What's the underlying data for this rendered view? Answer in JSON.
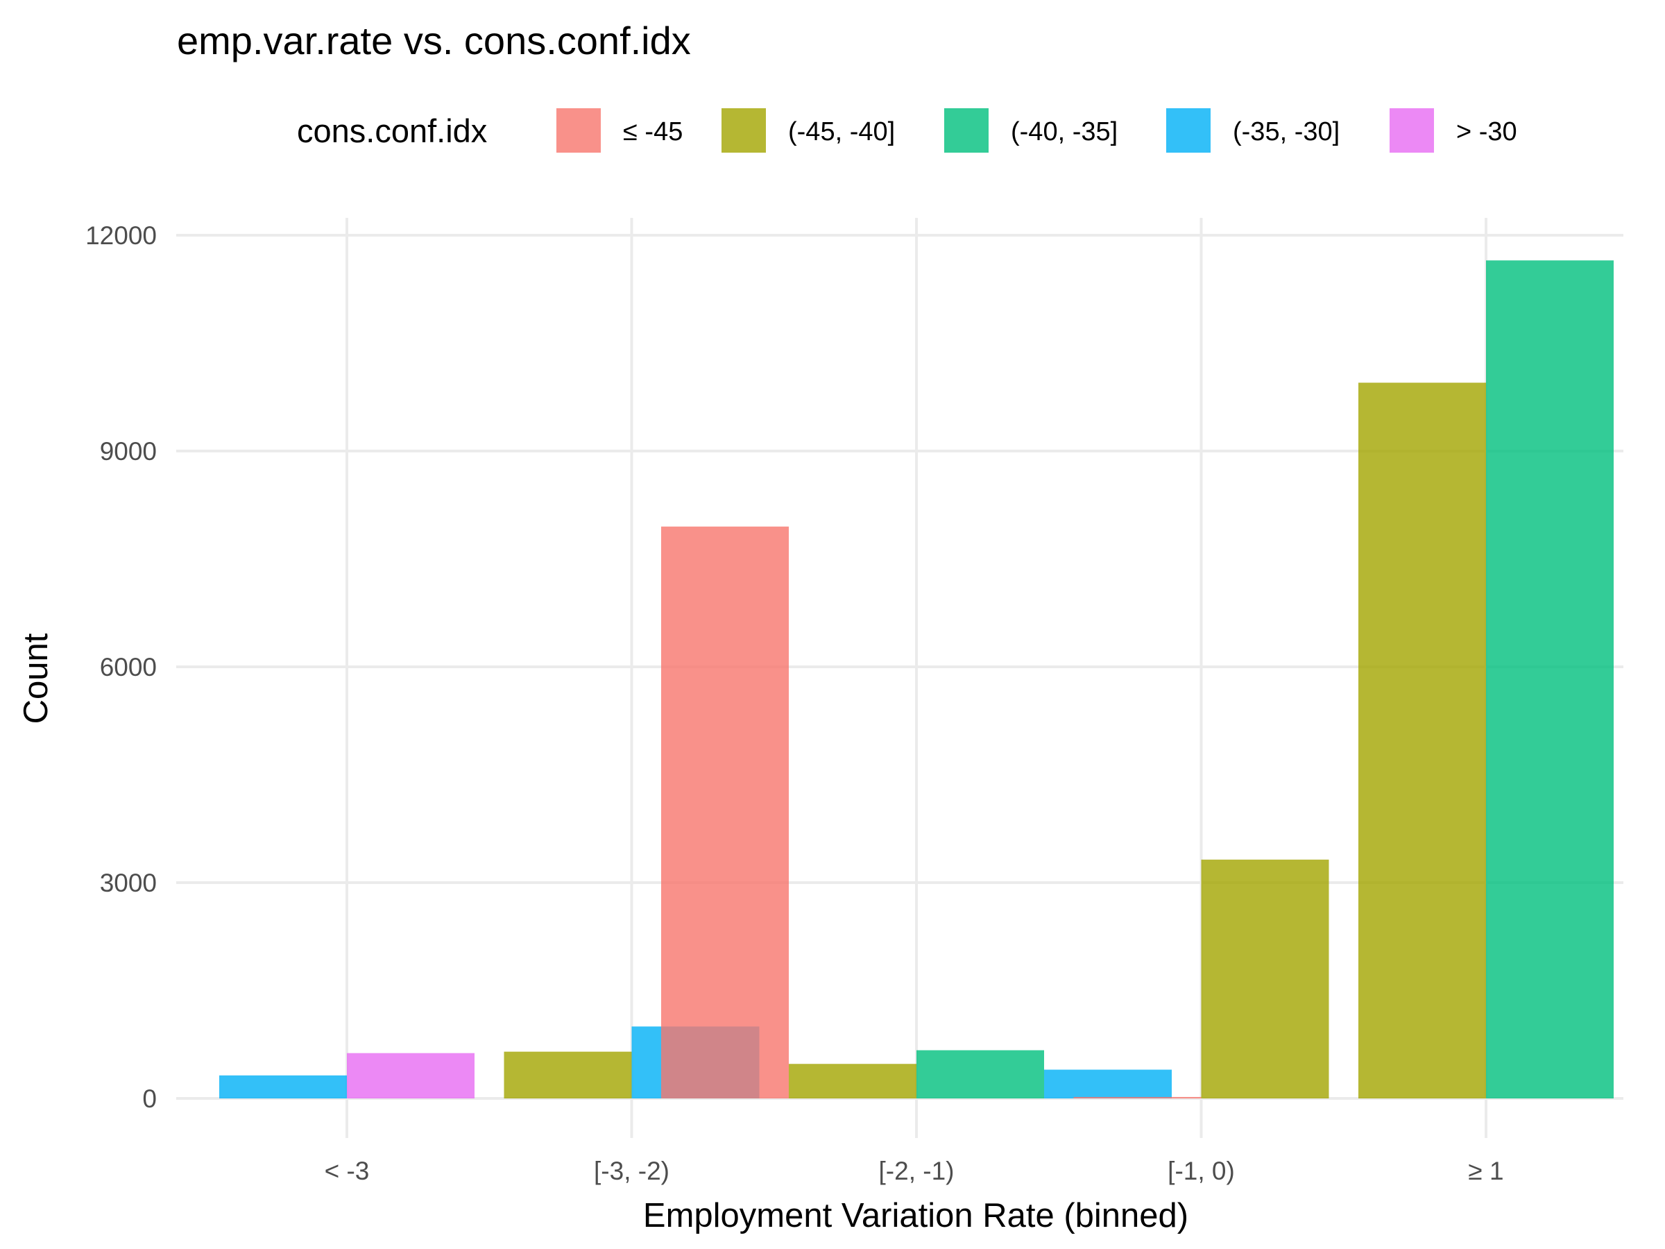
{
  "chart_data": {
    "type": "bar",
    "title": "emp.var.rate vs. cons.conf.idx",
    "xlabel": "Employment Variation Rate (binned)",
    "ylabel": "Count",
    "ylim": [
      -600,
      12200
    ],
    "yticks": [
      0,
      3000,
      6000,
      9000,
      12000
    ],
    "grid": true,
    "legend_position": "top",
    "legend_title": "cons.conf.idx",
    "categories": [
      "< -3",
      "[-3, -2)",
      "[-2, -1)",
      "[-1, 0)",
      "≥ 1"
    ],
    "series": [
      {
        "name": "≤ -45",
        "color": "#f8766d",
        "values": [
          null,
          null,
          7950,
          20,
          null
        ]
      },
      {
        "name": "(-45, -40]",
        "color": "#a3a500",
        "values": [
          null,
          650,
          480,
          3320,
          9950
        ]
      },
      {
        "name": "(-40, -35]",
        "color": "#00bf7d",
        "values": [
          null,
          null,
          670,
          null,
          11650
        ]
      },
      {
        "name": "(-35, -30]",
        "color": "#00b0f6",
        "values": [
          320,
          1000,
          400,
          null,
          null
        ]
      },
      {
        "name": "> -30",
        "color": "#e76bf3",
        "values": [
          630,
          null,
          null,
          null,
          null
        ]
      }
    ]
  }
}
